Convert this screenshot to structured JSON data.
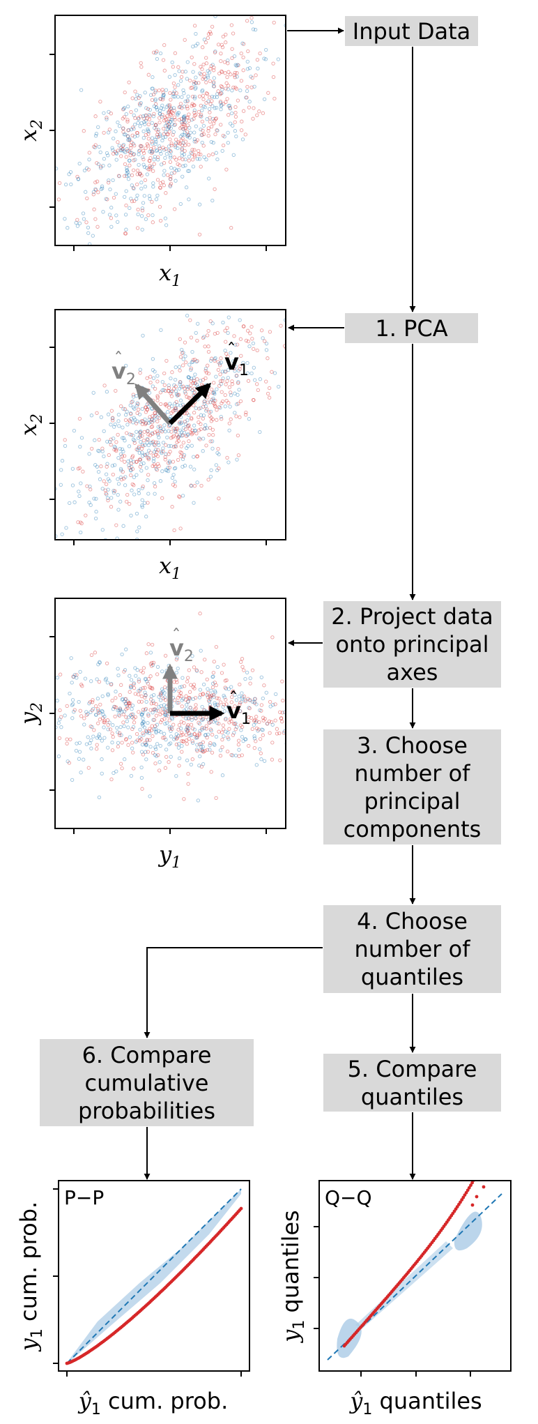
{
  "steps": {
    "input": "Input Data",
    "pca": "1. PCA",
    "project": "2. Project data\nonto principal\naxes",
    "choose_pc": "3. Choose\nnumber of\nprincipal\ncomponents",
    "choose_q": "4. Choose\nnumber of\nquantiles",
    "compare_q": "5. Compare\nquantiles",
    "compare_p": "6. Compare\ncumulative\nprobabilities"
  },
  "plots": {
    "input": {
      "x_label": "x",
      "x_sub": "1",
      "y_label": "x",
      "y_sub": "2"
    },
    "pca": {
      "x_label": "x",
      "x_sub": "1",
      "y_label": "x",
      "y_sub": "2",
      "v1": "v",
      "v1_sub": "1",
      "v2": "v",
      "v2_sub": "2"
    },
    "projected": {
      "x_label": "y",
      "x_sub": "1",
      "y_label": "y",
      "y_sub": "2",
      "v1": "v",
      "v1_sub": "1",
      "v2": "v",
      "v2_sub": "2"
    },
    "pp": {
      "corner": "P−P",
      "x_label": "cum. prob.",
      "y_label": "cum. prob."
    },
    "qq": {
      "corner": "Q−Q",
      "x_label": "quantiles",
      "y_label": "quantiles"
    }
  },
  "colors": {
    "blue": "#1f77b4",
    "red": "#d62728",
    "box": "#d9d9d9",
    "gray": "#808080",
    "band": "#aacbe6"
  }
}
